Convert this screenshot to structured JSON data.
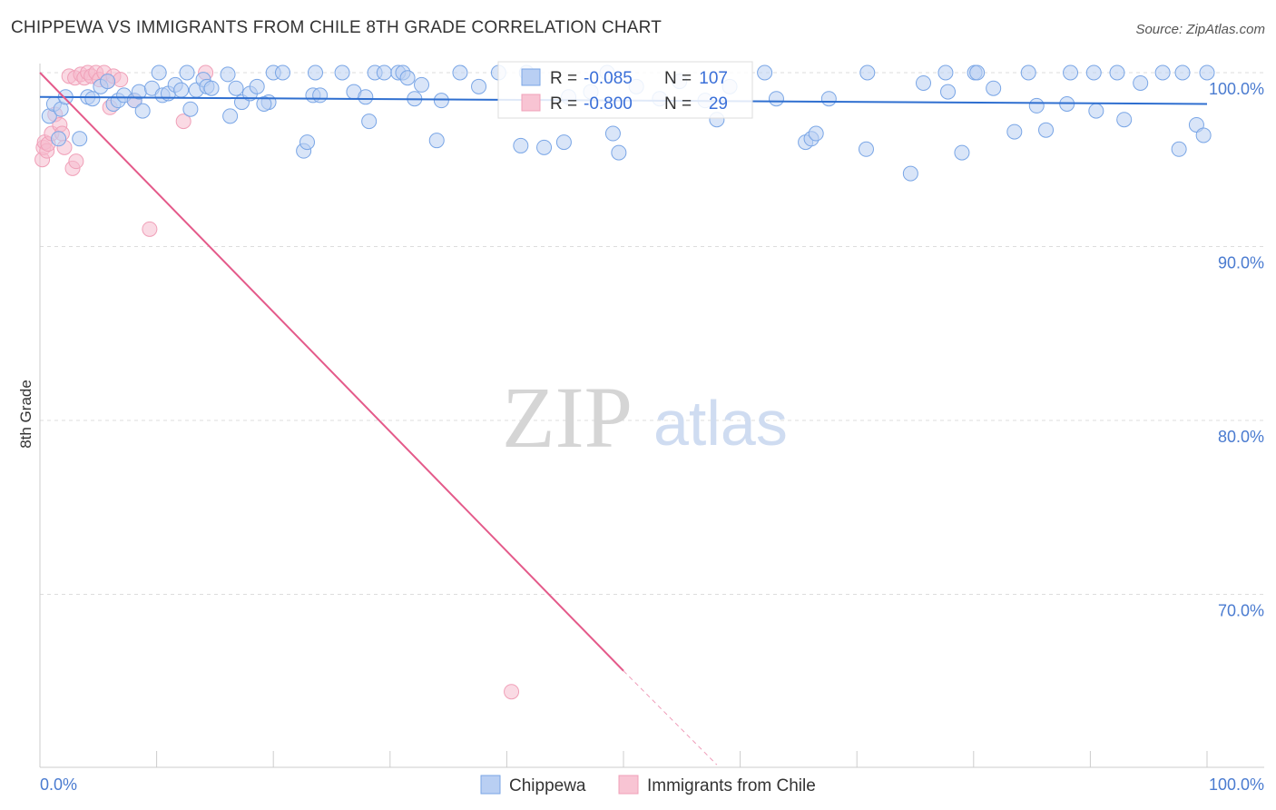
{
  "title": "CHIPPEWA VS IMMIGRANTS FROM CHILE 8TH GRADE CORRELATION CHART",
  "source": "Source: ZipAtlas.com",
  "watermark": {
    "zip": "ZIP",
    "atlas": "atlas"
  },
  "colors": {
    "blue": "#7aa6e6",
    "blue_line": "#2f6fd0",
    "pink": "#f0a0b8",
    "pink_line": "#e45a8a",
    "grid": "#dddddd",
    "axis_text": "#4a7bd0"
  },
  "chart_data": {
    "type": "scatter",
    "title": "CHIPPEWA VS IMMIGRANTS FROM CHILE 8TH GRADE CORRELATION CHART",
    "xlabel": "",
    "ylabel": "8th Grade",
    "xlim": [
      0,
      100
    ],
    "ylim": [
      60.2,
      101.0
    ],
    "x_tick_labels": [
      "0.0%",
      "100.0%"
    ],
    "y_ticks": [
      70,
      80,
      90,
      100
    ],
    "y_tick_labels": [
      "70.0%",
      "80.0%",
      "90.0%",
      "100.0%"
    ],
    "grid": true,
    "legend_position": "bottom-center",
    "stats": [
      {
        "series": "Chippewa",
        "r_label": "R =",
        "r": "-0.085",
        "n_label": "N =",
        "n": "107"
      },
      {
        "series": "Immigrants from Chile",
        "r_label": "R =",
        "r": "-0.800",
        "n_label": "N =",
        "n": "29"
      }
    ],
    "series": [
      {
        "name": "Chippewa",
        "color": "#7aa6e6",
        "trend": {
          "x": [
            0,
            100
          ],
          "y": [
            98.6,
            98.2
          ]
        },
        "points": [
          [
            0.8,
            97.5
          ],
          [
            1.2,
            98.2
          ],
          [
            1.6,
            96.2
          ],
          [
            1.8,
            97.9
          ],
          [
            2.2,
            98.6
          ],
          [
            3.4,
            96.2
          ],
          [
            4.1,
            98.6
          ],
          [
            4.5,
            98.5
          ],
          [
            5.2,
            99.2
          ],
          [
            5.8,
            99.5
          ],
          [
            6.3,
            98.2
          ],
          [
            6.7,
            98.4
          ],
          [
            7.2,
            98.7
          ],
          [
            8.1,
            98.4
          ],
          [
            8.5,
            98.9
          ],
          [
            8.8,
            97.8
          ],
          [
            9.6,
            99.1
          ],
          [
            10.2,
            100.0
          ],
          [
            10.5,
            98.7
          ],
          [
            11.0,
            98.8
          ],
          [
            11.6,
            99.3
          ],
          [
            12.1,
            99.0
          ],
          [
            12.6,
            100.0
          ],
          [
            12.9,
            97.9
          ],
          [
            13.4,
            99.0
          ],
          [
            14.0,
            99.6
          ],
          [
            14.3,
            99.2
          ],
          [
            14.7,
            99.1
          ],
          [
            16.1,
            99.9
          ],
          [
            16.3,
            97.5
          ],
          [
            16.8,
            99.1
          ],
          [
            17.3,
            98.3
          ],
          [
            18.0,
            98.8
          ],
          [
            18.6,
            99.2
          ],
          [
            19.6,
            98.3
          ],
          [
            20.0,
            100.0
          ],
          [
            20.8,
            100.0
          ],
          [
            22.6,
            95.5
          ],
          [
            22.9,
            96.0
          ],
          [
            23.4,
            98.7
          ],
          [
            23.6,
            100.0
          ],
          [
            24.0,
            98.7
          ],
          [
            25.9,
            100.0
          ],
          [
            26.9,
            98.9
          ],
          [
            27.9,
            98.6
          ],
          [
            28.2,
            97.2
          ],
          [
            28.7,
            100.0
          ],
          [
            29.5,
            100.0
          ],
          [
            30.7,
            100.0
          ],
          [
            31.1,
            100.0
          ],
          [
            31.5,
            99.7
          ],
          [
            32.1,
            98.5
          ],
          [
            32.7,
            99.3
          ],
          [
            34.0,
            96.1
          ],
          [
            36.0,
            100.0
          ],
          [
            37.6,
            99.2
          ],
          [
            39.3,
            100.0
          ],
          [
            41.2,
            95.8
          ],
          [
            41.7,
            100.0
          ],
          [
            43.2,
            95.7
          ],
          [
            44.9,
            96.0
          ],
          [
            45.3,
            98.6
          ],
          [
            48.6,
            100.0
          ],
          [
            49.1,
            96.5
          ],
          [
            49.6,
            95.4
          ],
          [
            51.1,
            99.2
          ],
          [
            53.1,
            98.5
          ],
          [
            54.8,
            99.5
          ],
          [
            58.0,
            97.3
          ],
          [
            59.1,
            99.2
          ],
          [
            62.1,
            100.0
          ],
          [
            63.1,
            98.5
          ],
          [
            65.6,
            96.0
          ],
          [
            66.1,
            96.2
          ],
          [
            66.5,
            96.5
          ],
          [
            67.6,
            98.5
          ],
          [
            70.8,
            95.6
          ],
          [
            70.9,
            100.0
          ],
          [
            74.6,
            94.2
          ],
          [
            75.7,
            99.4
          ],
          [
            77.6,
            100.0
          ],
          [
            77.8,
            98.9
          ],
          [
            79.0,
            95.4
          ],
          [
            80.1,
            100.0
          ],
          [
            80.3,
            100.0
          ],
          [
            81.7,
            99.1
          ],
          [
            83.5,
            96.6
          ],
          [
            84.7,
            100.0
          ],
          [
            85.4,
            98.1
          ],
          [
            86.2,
            96.7
          ],
          [
            88.3,
            100.0
          ],
          [
            90.3,
            100.0
          ],
          [
            90.5,
            97.8
          ],
          [
            92.3,
            100.0
          ],
          [
            92.9,
            97.3
          ],
          [
            94.3,
            99.4
          ],
          [
            96.2,
            100.0
          ],
          [
            97.6,
            95.6
          ],
          [
            97.9,
            100.0
          ],
          [
            99.1,
            97.0
          ],
          [
            99.7,
            96.4
          ],
          [
            100.0,
            100.0
          ],
          [
            88.0,
            98.2
          ],
          [
            57.0,
            98.4
          ],
          [
            47.2,
            98.9
          ],
          [
            34.4,
            98.4
          ],
          [
            19.2,
            98.2
          ]
        ]
      },
      {
        "name": "Immigrants from Chile",
        "color": "#f0a0b8",
        "trend": {
          "x": [
            0,
            50
          ],
          "y": [
            100.0,
            65.6
          ]
        },
        "trend_dashed": {
          "x": [
            50,
            58
          ],
          "y": [
            65.6,
            60.2
          ]
        },
        "points": [
          [
            0.2,
            95.0
          ],
          [
            0.3,
            95.7
          ],
          [
            0.4,
            96.0
          ],
          [
            0.6,
            95.5
          ],
          [
            0.7,
            95.9
          ],
          [
            1.0,
            96.5
          ],
          [
            1.3,
            97.6
          ],
          [
            1.7,
            97.0
          ],
          [
            1.9,
            96.5
          ],
          [
            2.1,
            95.7
          ],
          [
            2.5,
            99.8
          ],
          [
            2.8,
            94.5
          ],
          [
            3.0,
            99.7
          ],
          [
            3.1,
            94.9
          ],
          [
            3.5,
            99.9
          ],
          [
            3.8,
            99.7
          ],
          [
            4.1,
            100.0
          ],
          [
            4.4,
            99.8
          ],
          [
            4.8,
            100.0
          ],
          [
            5.1,
            99.6
          ],
          [
            5.5,
            100.0
          ],
          [
            5.8,
            99.5
          ],
          [
            6.0,
            98.0
          ],
          [
            6.3,
            99.8
          ],
          [
            6.9,
            99.6
          ],
          [
            8.1,
            98.4
          ],
          [
            9.4,
            91.0
          ],
          [
            12.3,
            97.2
          ],
          [
            14.2,
            100.0
          ]
        ],
        "outliers": [
          [
            40.4,
            64.4
          ]
        ]
      }
    ]
  }
}
